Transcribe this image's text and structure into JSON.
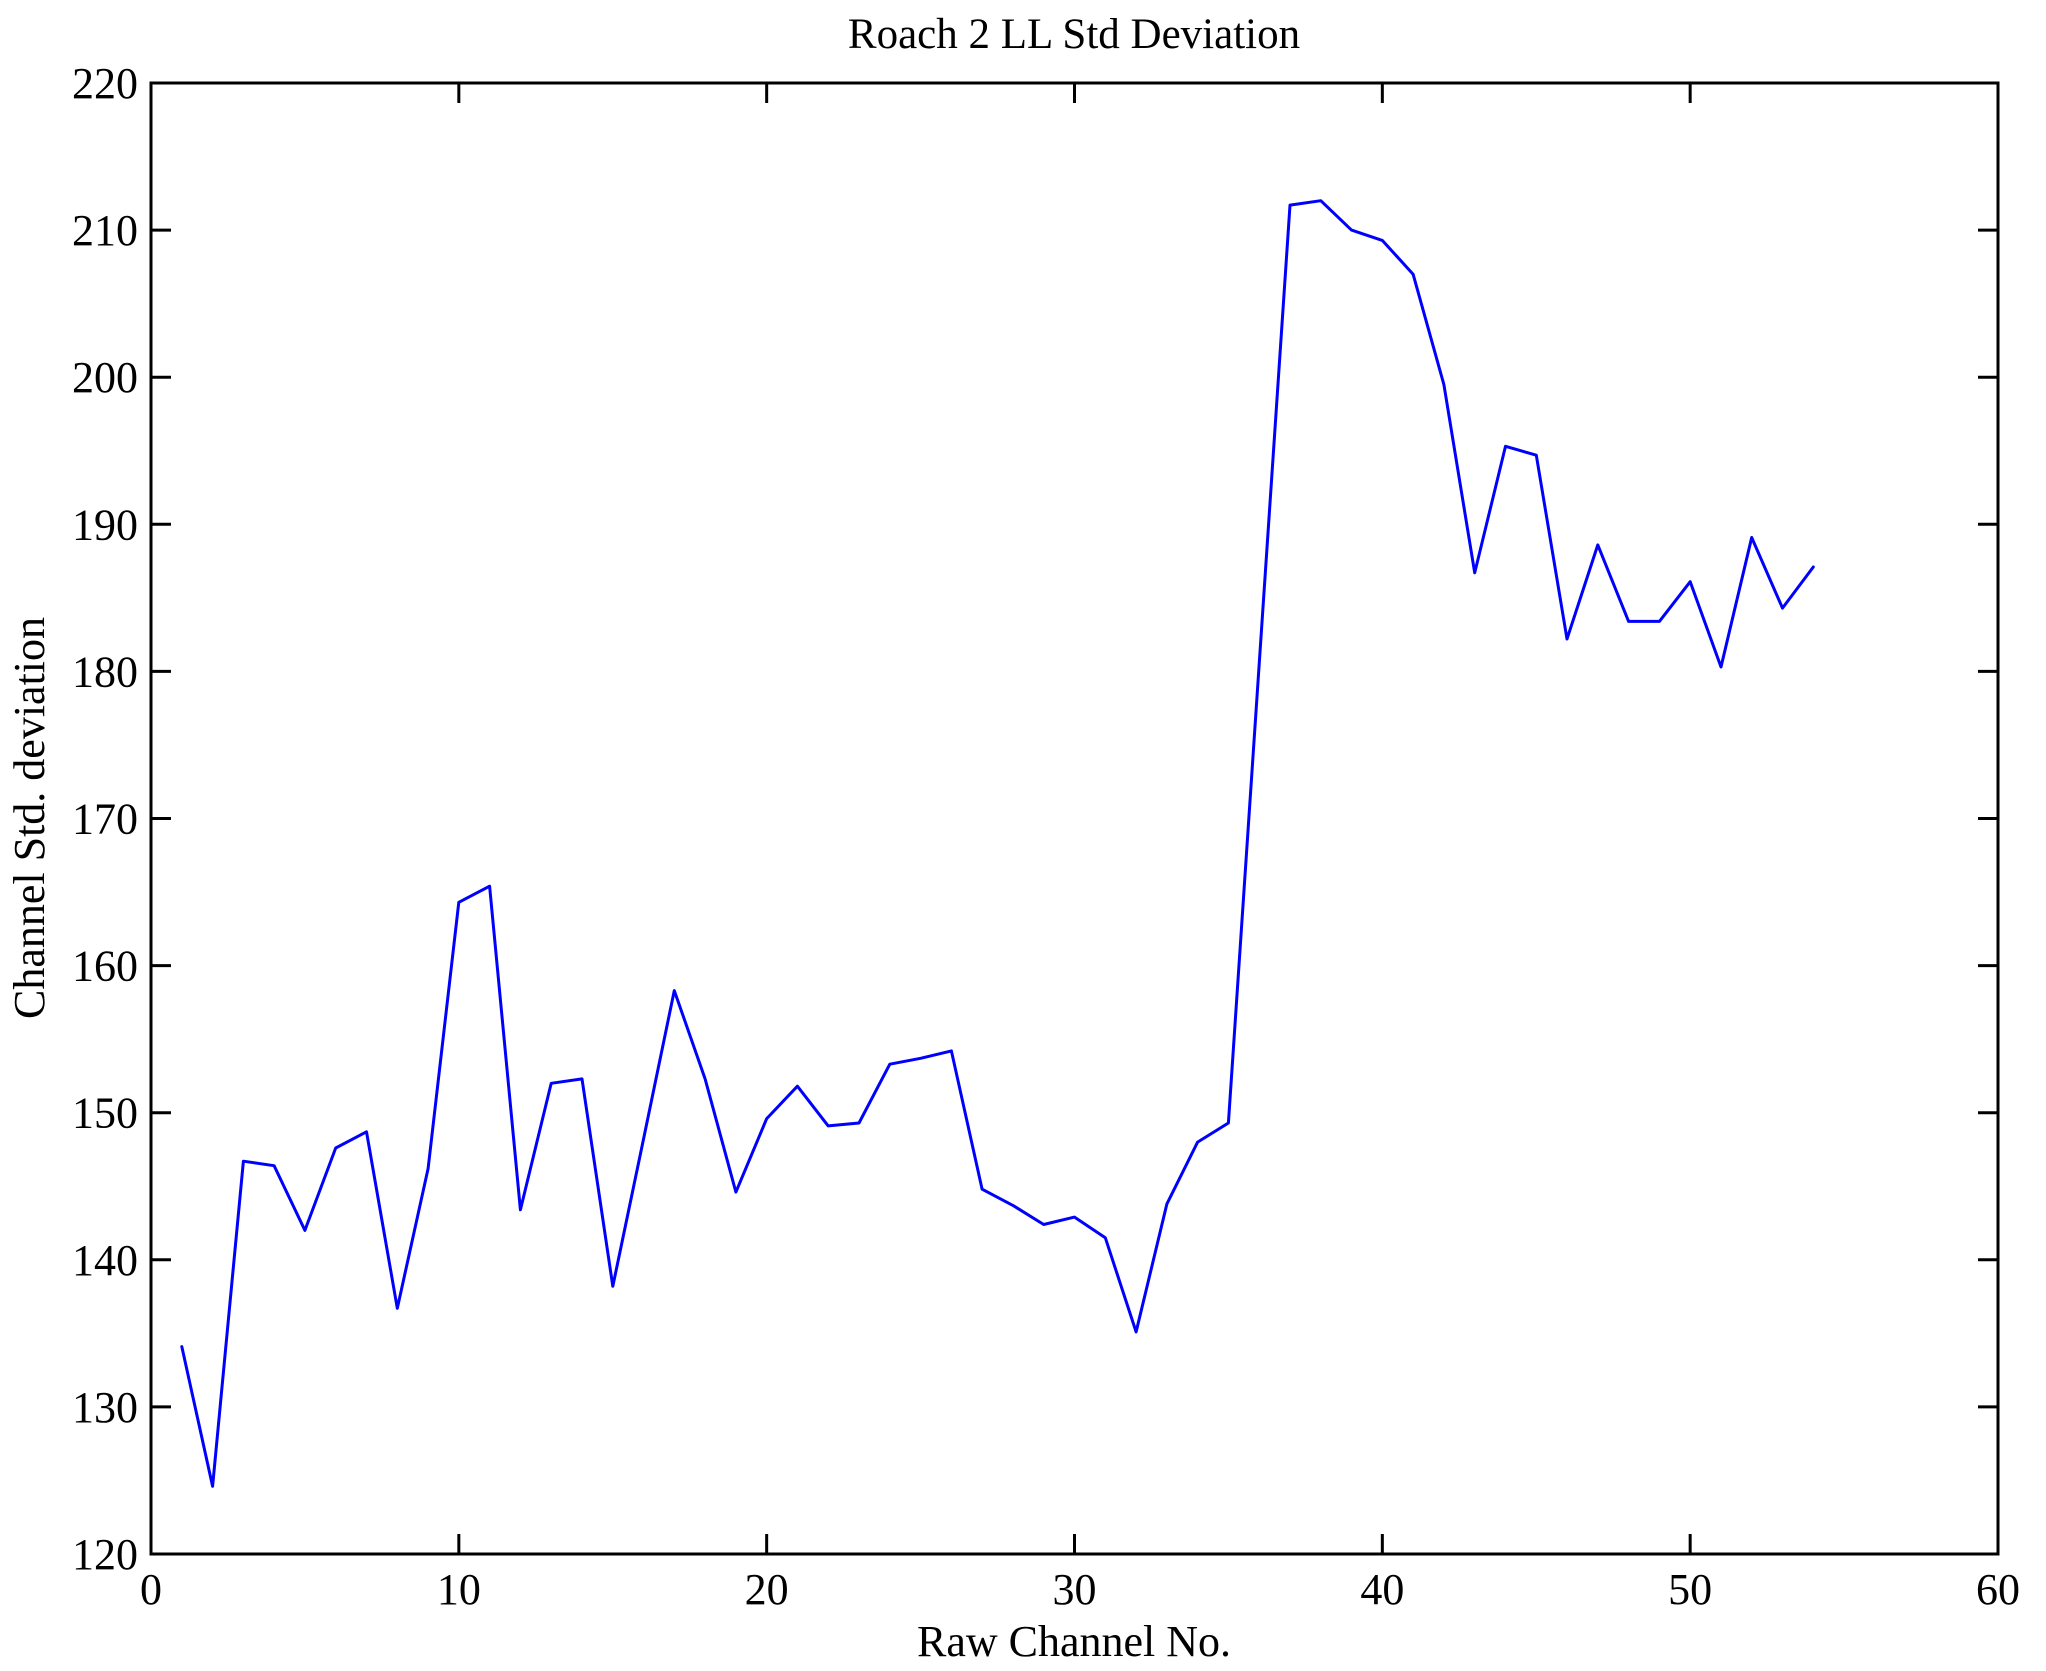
{
  "figure": {
    "title": "Roach 2 LL Std Deviation",
    "xlabel": "Raw Channel No.",
    "ylabel": "Channel Std. deviation"
  },
  "chart_data": {
    "type": "line",
    "title": "Roach 2 LL Std Deviation",
    "xlabel": "Raw Channel No.",
    "ylabel": "Channel Std. deviation",
    "x": [
      1,
      2,
      3,
      4,
      5,
      6,
      7,
      8,
      9,
      10,
      11,
      12,
      13,
      14,
      15,
      16,
      17,
      18,
      19,
      20,
      21,
      22,
      23,
      24,
      25,
      26,
      27,
      28,
      29,
      30,
      31,
      32,
      33,
      34,
      35,
      36,
      37,
      38,
      39,
      40,
      41,
      42,
      43,
      44,
      45,
      46,
      47,
      48,
      49,
      50,
      51,
      52,
      53,
      54
    ],
    "values": [
      134.1,
      124.6,
      146.7,
      146.4,
      142.0,
      147.6,
      148.7,
      136.7,
      146.2,
      164.3,
      165.4,
      143.4,
      152.0,
      152.3,
      138.2,
      148.2,
      158.3,
      152.3,
      144.6,
      149.6,
      151.8,
      149.1,
      149.3,
      153.3,
      153.7,
      154.2,
      144.8,
      143.7,
      142.4,
      142.9,
      141.5,
      135.1,
      143.8,
      148.0,
      149.3,
      180.5,
      211.7,
      212.0,
      210.0,
      209.3,
      207.0,
      199.5,
      186.7,
      195.3,
      194.7,
      182.2,
      188.6,
      183.4,
      183.4,
      186.1,
      180.3,
      189.1,
      184.3,
      187.1
    ],
    "xlim": [
      0,
      60
    ],
    "ylim": [
      120,
      220
    ],
    "xticks": [
      0,
      10,
      20,
      30,
      40,
      50,
      60
    ],
    "yticks": [
      120,
      130,
      140,
      150,
      160,
      170,
      180,
      190,
      200,
      210,
      220
    ],
    "grid": false,
    "legend_position": "none",
    "line_color": "#0000ff",
    "axis_color": "#000000",
    "background_color": "#ffffff"
  }
}
